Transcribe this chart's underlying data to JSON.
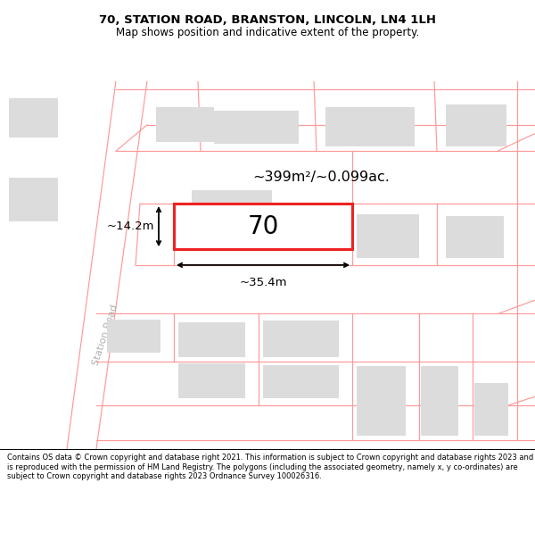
{
  "title": "70, STATION ROAD, BRANSTON, LINCOLN, LN4 1LH",
  "subtitle": "Map shows position and indicative extent of the property.",
  "footer": "Contains OS data © Crown copyright and database right 2021. This information is subject to Crown copyright and database rights 2023 and is reproduced with the permission of HM Land Registry. The polygons (including the associated geometry, namely x, y co-ordinates) are subject to Crown copyright and database rights 2023 Ordnance Survey 100026316.",
  "road_color": "#ffffff",
  "pink_line_color": "#ff9999",
  "building_color": "#dcdcdc",
  "plot_outline_color": "#ee2222",
  "road_label": "Station Road",
  "plot_label": "70",
  "area_label": "~399m²/~0.099ac.",
  "width_label": "~35.4m",
  "height_label": "~14.2m",
  "map_bg": "#ebebeb"
}
